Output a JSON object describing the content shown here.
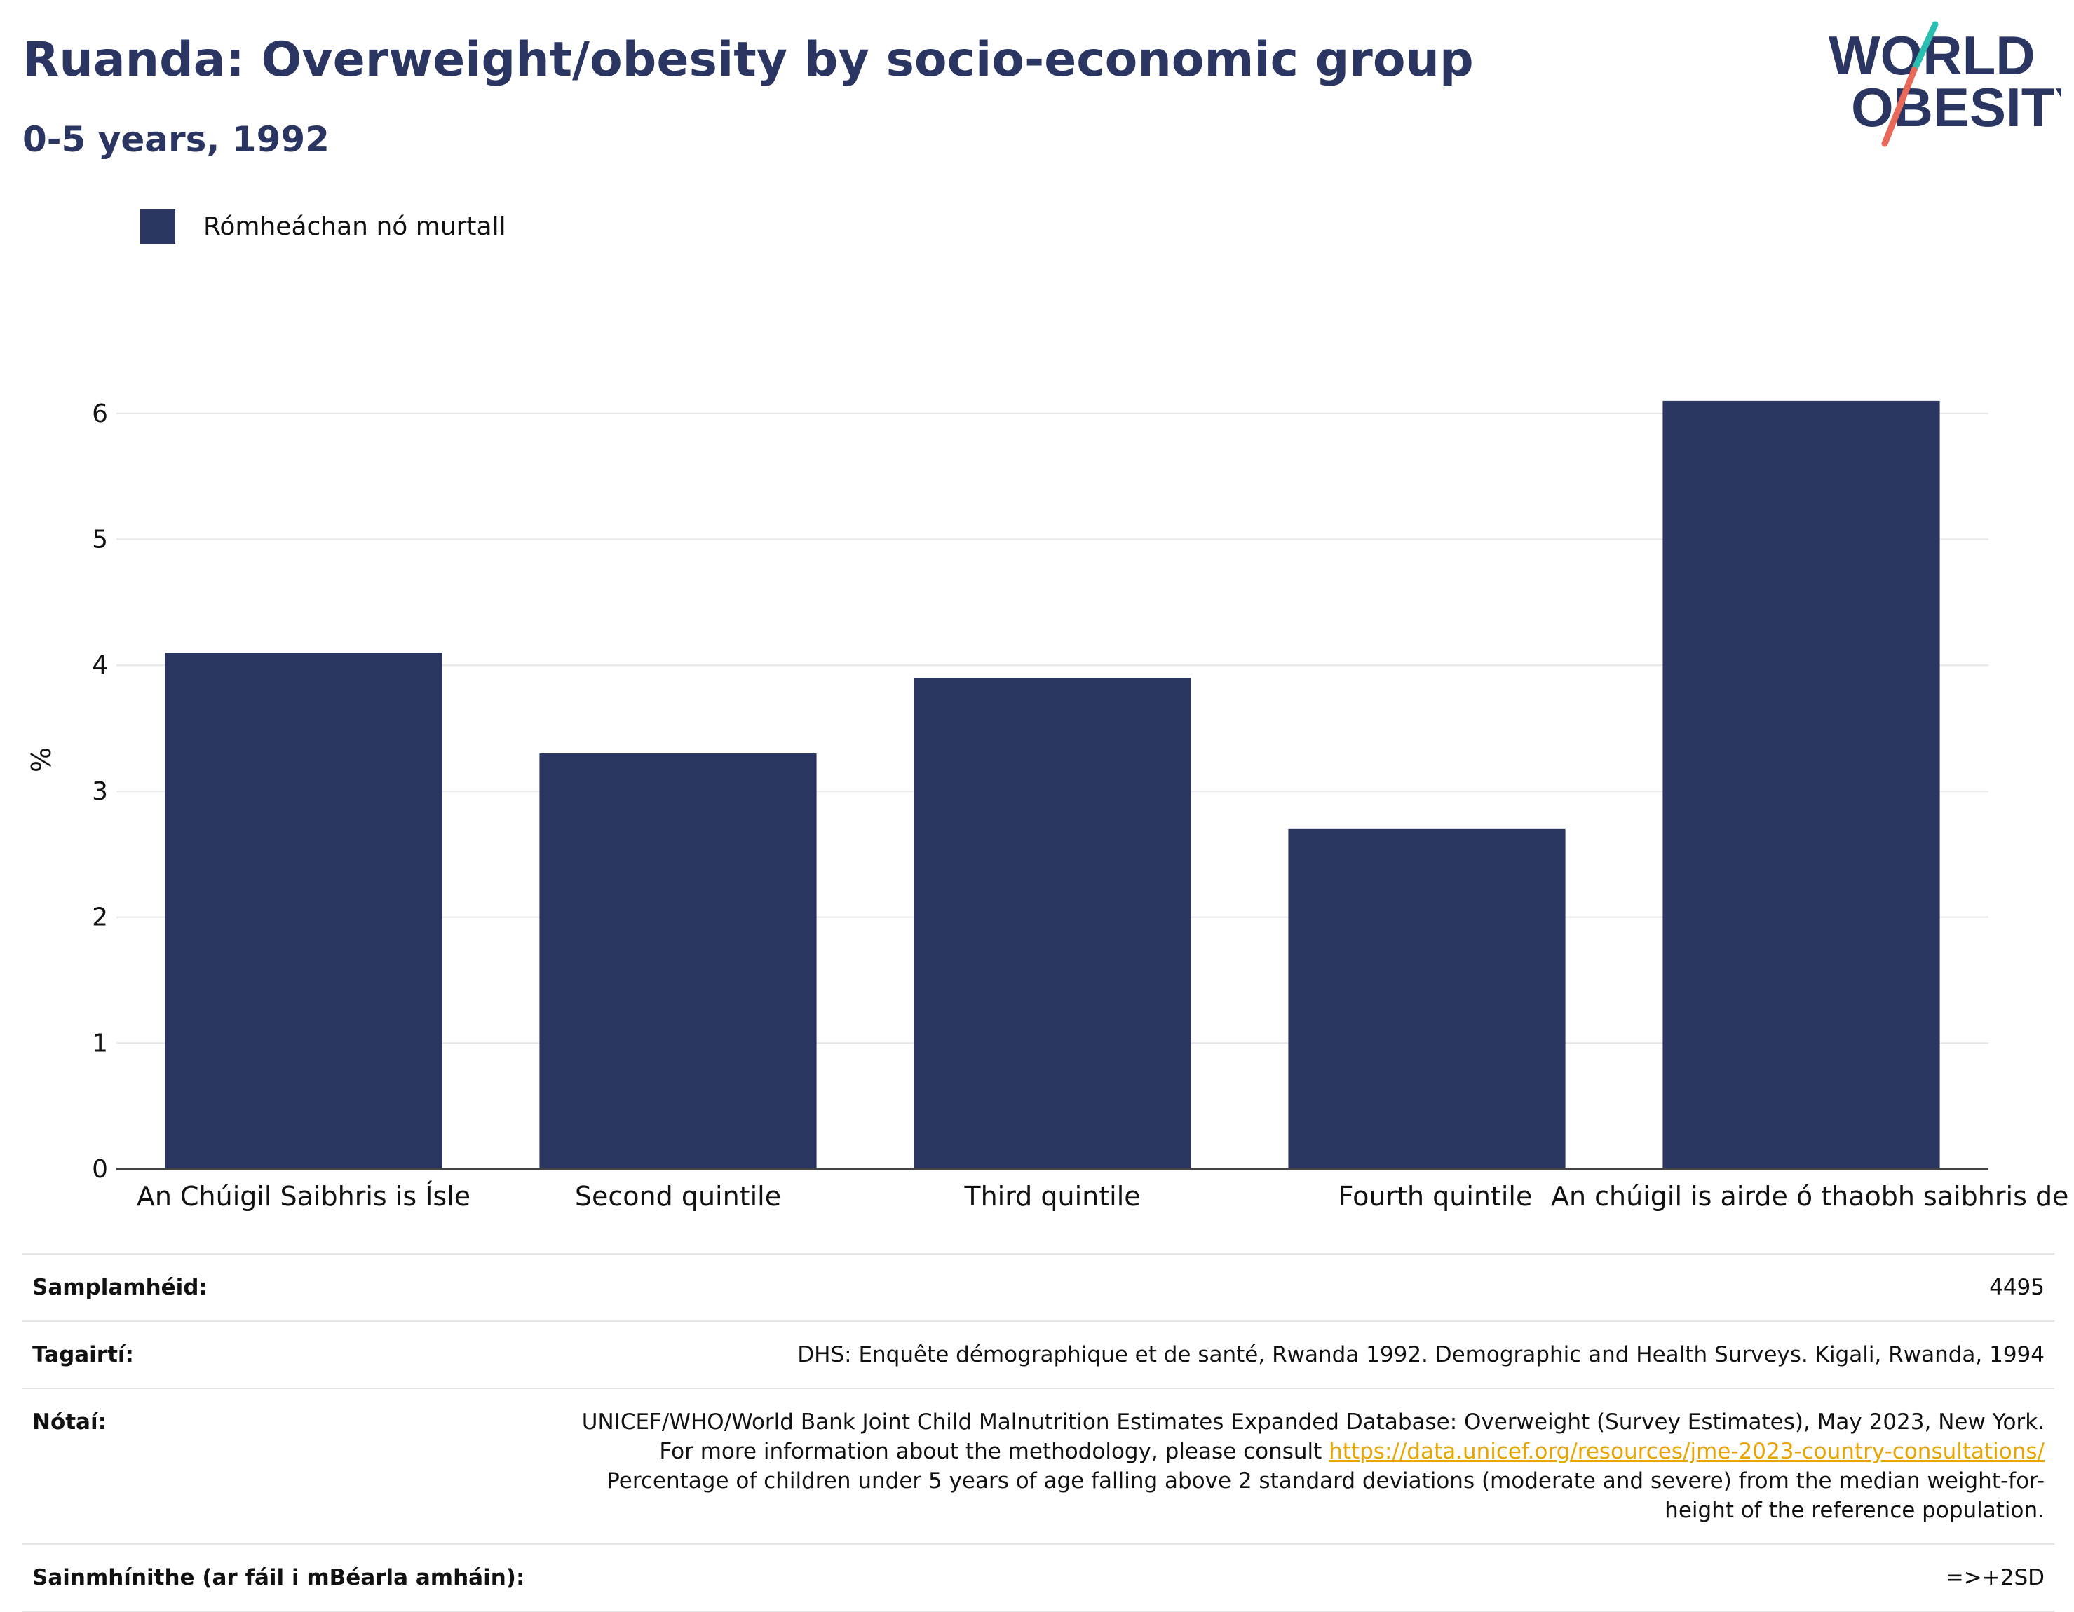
{
  "header": {
    "title": "Ruanda: Overweight/obesity by socio-economic group",
    "subtitle": "0-5 years, 1992"
  },
  "logo": {
    "line1": "WORLD",
    "line2": "OBESITY"
  },
  "legend": {
    "label": "Rómheáchan nó murtall",
    "color": "#2a3561"
  },
  "chart_data": {
    "type": "bar",
    "title": "Ruanda: Overweight/obesity by socio-economic group",
    "subtitle": "0-5 years, 1992",
    "categories": [
      "An Chúigil Saibhris is Ísle",
      "Second quintile",
      "Third quintile",
      "Fourth quintile",
      "An chúigil is airde ó thaobh saibhris de"
    ],
    "series": [
      {
        "name": "Rómheáchan nó murtall",
        "values": [
          4.1,
          3.3,
          3.9,
          2.7,
          6.1
        ],
        "color": "#2a3561"
      }
    ],
    "ylabel": "%",
    "xlabel": "",
    "ylim": [
      0,
      6.5
    ],
    "yticks": [
      0,
      1,
      2,
      3,
      4,
      5,
      6
    ],
    "grid": true,
    "legend_position": "top-left"
  },
  "info": {
    "sample_size": {
      "label": "Samplamhéid:",
      "value": "4495"
    },
    "references": {
      "label": "Tagairtí:",
      "value": "DHS: Enquête démographique et de santé, Rwanda 1992. Demographic and Health Surveys. Kigali, Rwanda, 1994"
    },
    "notes": {
      "label": "Nótaí:",
      "text_before_link": "UNICEF/WHO/World Bank Joint Child Malnutrition Estimates Expanded Database: Overweight (Survey Estimates), May 2023, New York. For more information about the methodology, please consult ",
      "link": "https://data.unicef.org/resources/jme-2023-country-consultations/",
      "text_after_link": " Percentage of children under 5 years of age falling above 2 standard deviations (moderate and severe) from the median weight-for-height of the reference population."
    },
    "definitions": {
      "label": "Sainmhínithe (ar fáil i mBéarla amháin):",
      "value": "=>+2SD"
    }
  }
}
